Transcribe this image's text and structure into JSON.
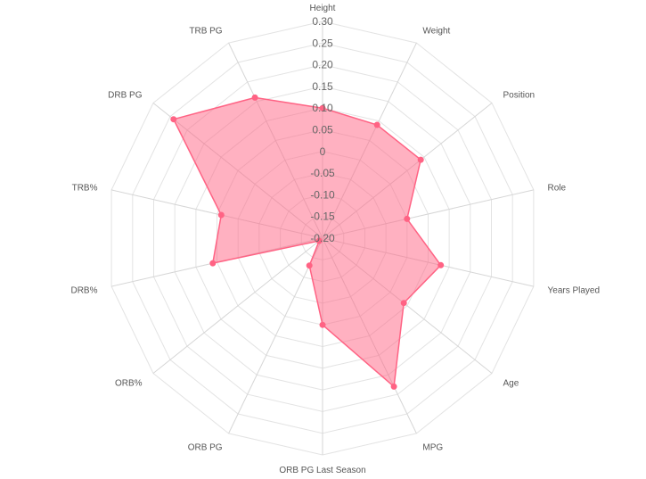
{
  "chart_data": {
    "type": "radar",
    "title": "",
    "scale": {
      "min": -0.2,
      "max": 0.3,
      "step": 0.05
    },
    "tick_labels": [
      "-0.20",
      "-0.15",
      "-0.10",
      "-0.05",
      "0",
      "0.05",
      "0.10",
      "0.15",
      "0.20",
      "0.25",
      "0.30"
    ],
    "categories": [
      "Height",
      "Weight",
      "Position",
      "Role",
      "Years Played",
      "Age",
      "MPG",
      "ORB PG Last Season",
      "ORB PG",
      "ORB%",
      "DRB%",
      "TRB%",
      "DRB PG",
      "TRB PG"
    ],
    "series": [
      {
        "name": "",
        "color": "#ff6384",
        "fill": "rgba(255,99,132,0.5)",
        "values": [
          0.1,
          0.09,
          0.09,
          0.0,
          0.08,
          0.04,
          0.18,
          -0.0,
          -0.13,
          -0.19,
          0.06,
          0.04,
          0.24,
          0.16
        ]
      }
    ],
    "grid": true
  }
}
